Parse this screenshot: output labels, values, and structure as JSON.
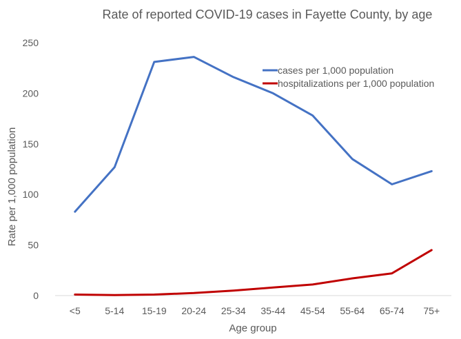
{
  "chart_data": {
    "type": "line",
    "title": "Rate of reported COVID-19 cases in Fayette County, by age",
    "xlabel": "Age group",
    "ylabel": "Rate per 1,000 population",
    "categories": [
      "<5",
      "5-14",
      "15-19",
      "20-24",
      "25-34",
      "35-44",
      "45-54",
      "55-64",
      "65-74",
      "75+"
    ],
    "ylim": [
      0,
      250
    ],
    "yticks": [
      0,
      50,
      100,
      150,
      200,
      250
    ],
    "grid": false,
    "legend_position": "top-right",
    "series": [
      {
        "name": "cases per 1,000 population",
        "color": "#4472C4",
        "values": [
          83,
          127,
          231,
          236,
          216,
          200,
          178,
          135,
          110,
          123
        ]
      },
      {
        "name": "hospitalizations per 1,000 population",
        "color": "#C00000",
        "values": [
          1,
          0.5,
          1,
          2.5,
          5,
          8,
          11,
          17,
          22,
          45
        ]
      }
    ]
  }
}
